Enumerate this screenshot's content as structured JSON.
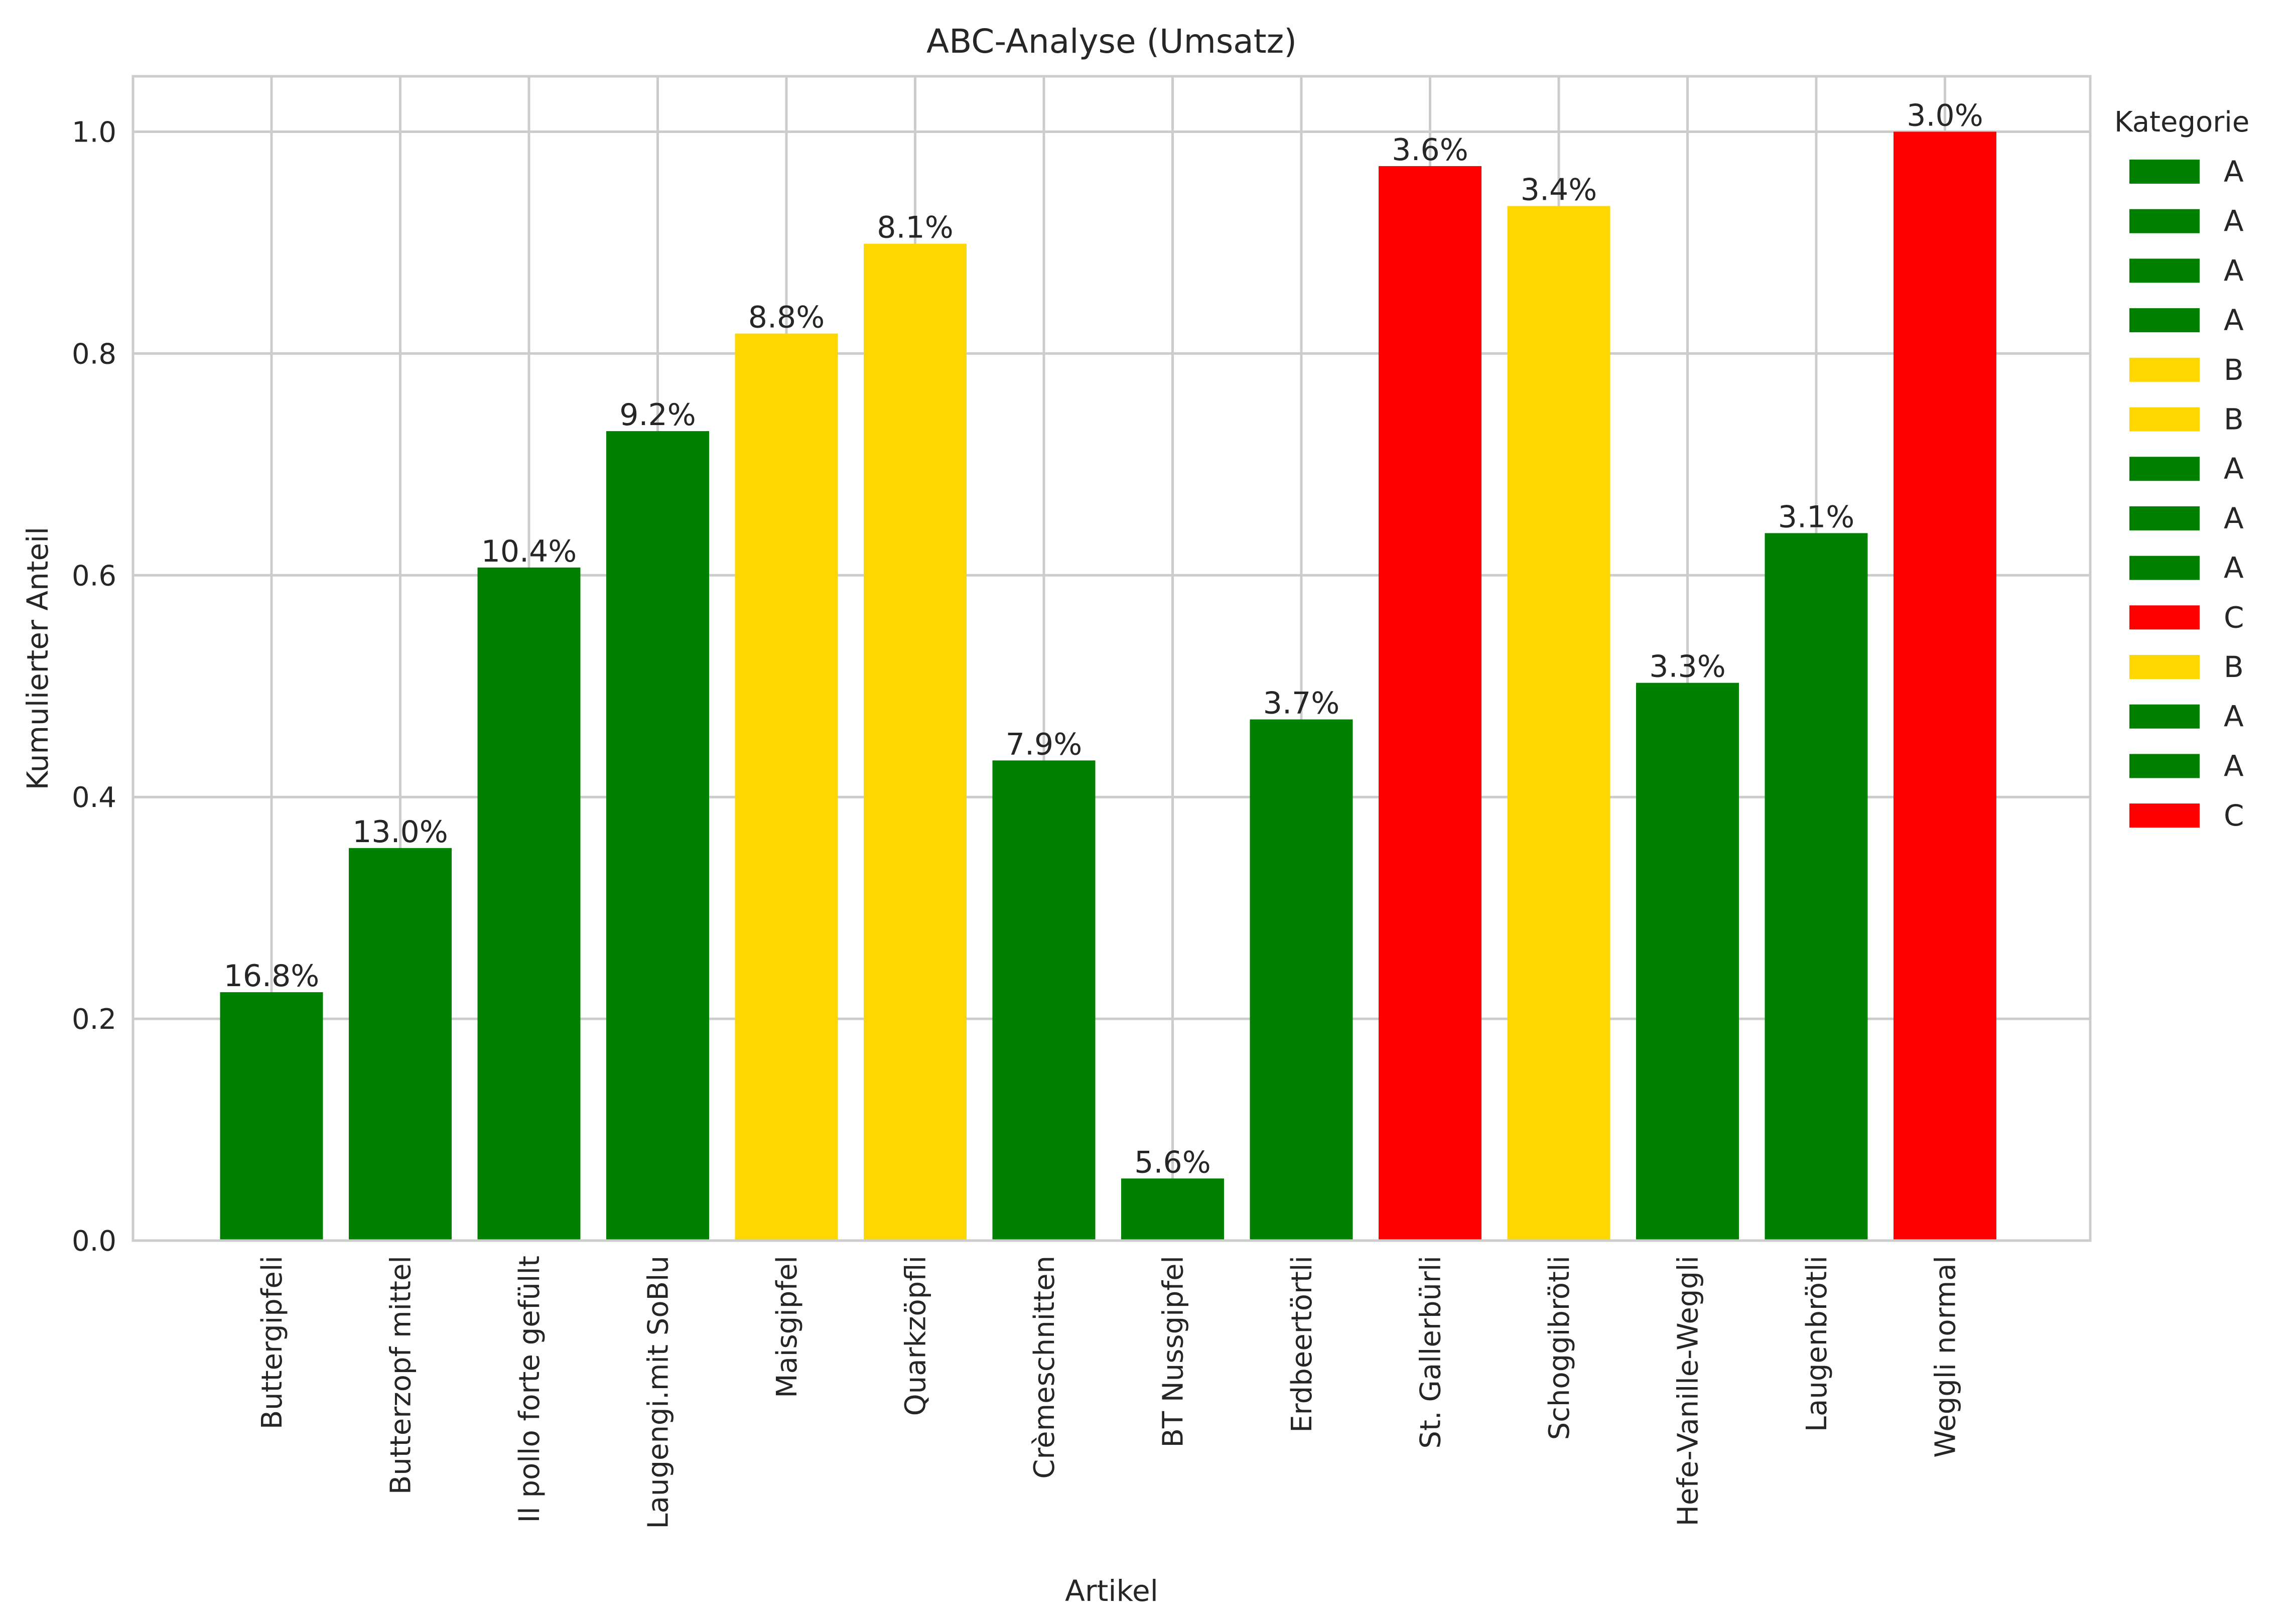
{
  "chart_data": {
    "type": "bar",
    "title": "ABC-Analyse (Umsatz)",
    "xlabel": "Artikel",
    "ylabel": "Kumulierter Anteil",
    "ylim": [
      0,
      1.05
    ],
    "yticks": [
      0.0,
      0.2,
      0.4,
      0.6,
      0.8,
      1.0
    ],
    "ytick_labels": [
      "0.0",
      "0.2",
      "0.4",
      "0.6",
      "0.8",
      "1.0"
    ],
    "grid": true,
    "legend_position": "right",
    "legend_title": "Kategorie",
    "categories": [
      "Buttergipfeli",
      "Butterzopf mittel",
      "Il pollo forte gefüllt",
      "Laugengi.mit SoBlu",
      "Maisgipfel",
      "Quarkzöpfli",
      "Crèmeschnitten",
      "BT Nussgipfel",
      "Erdbeertörtli",
      "St. Gallerbürli",
      "Schoggibrötli",
      "Hefe-Vanille-Weggli",
      "Laugenbrötli",
      "Weggli normal"
    ],
    "values": [
      0.224,
      0.354,
      0.607,
      0.73,
      0.818,
      0.899,
      0.433,
      0.056,
      0.47,
      0.969,
      0.933,
      0.503,
      0.638,
      1.0
    ],
    "data_labels": [
      "16.8%",
      "13.0%",
      "10.4%",
      "9.2%",
      "8.8%",
      "8.1%",
      "7.9%",
      "5.6%",
      "3.7%",
      "3.6%",
      "3.4%",
      "3.3%",
      "3.1%",
      "3.0%"
    ],
    "bar_categories": [
      "A",
      "A",
      "A",
      "A",
      "B",
      "B",
      "A",
      "A",
      "A",
      "C",
      "B",
      "A",
      "A",
      "C"
    ],
    "legend_entries": [
      "A",
      "A",
      "A",
      "A",
      "B",
      "B",
      "A",
      "A",
      "A",
      "C",
      "B",
      "A",
      "A",
      "C"
    ],
    "colors": {
      "A": "#008000",
      "B": "#ffd700",
      "C": "#ff0000"
    }
  }
}
